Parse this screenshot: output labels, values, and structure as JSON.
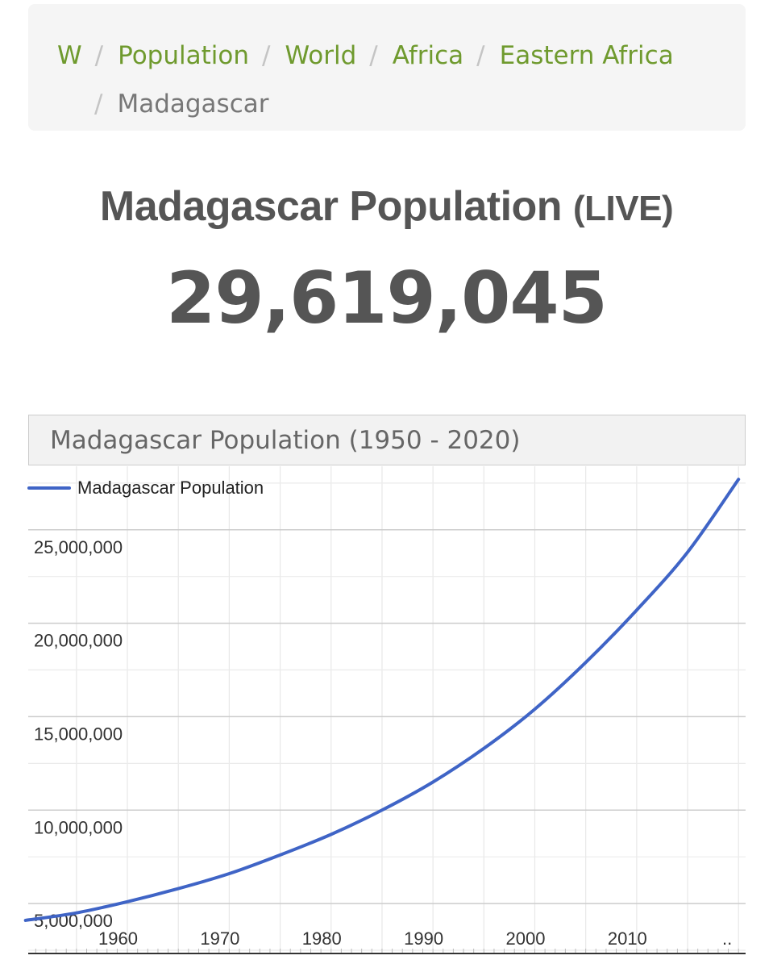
{
  "breadcrumb": {
    "items": [
      "W",
      "Population",
      "World",
      "Africa",
      "Eastern Africa"
    ],
    "separator": "/",
    "current": "Madagascar"
  },
  "live": {
    "title": "Madagascar Population",
    "suffix": "(LIVE)",
    "count": "29,619,045"
  },
  "chart_header": "Madagascar Population (1950 - 2020)",
  "chart_data": {
    "type": "line",
    "title": "Madagascar Population (1950 - 2020)",
    "legend_position": "top-left",
    "grid": true,
    "x_ticks": [
      "1960",
      "1970",
      "1980",
      "1990",
      "2000",
      "2010"
    ],
    "x_more_label": "..",
    "y_ticks": [
      "5,000,000",
      "10,000,000",
      "15,000,000",
      "20,000,000",
      "25,000,000"
    ],
    "y_tick_values": [
      5000000,
      10000000,
      15000000,
      20000000,
      25000000
    ],
    "xlim": [
      1950.5,
      2020.3
    ],
    "ylim": [
      2500000,
      28400000
    ],
    "series": [
      {
        "name": "Madagascar Population",
        "color": "#3f64c6",
        "points": [
          [
            1950,
            4100000
          ],
          [
            1955,
            4500000
          ],
          [
            1960,
            5100000
          ],
          [
            1965,
            5800000
          ],
          [
            1970,
            6600000
          ],
          [
            1975,
            7600000
          ],
          [
            1980,
            8700000
          ],
          [
            1985,
            10000000
          ],
          [
            1990,
            11500000
          ],
          [
            1995,
            13300000
          ],
          [
            2000,
            15400000
          ],
          [
            2005,
            17900000
          ],
          [
            2010,
            20700000
          ],
          [
            2015,
            23800000
          ],
          [
            2020,
            27700000
          ]
        ]
      }
    ]
  }
}
